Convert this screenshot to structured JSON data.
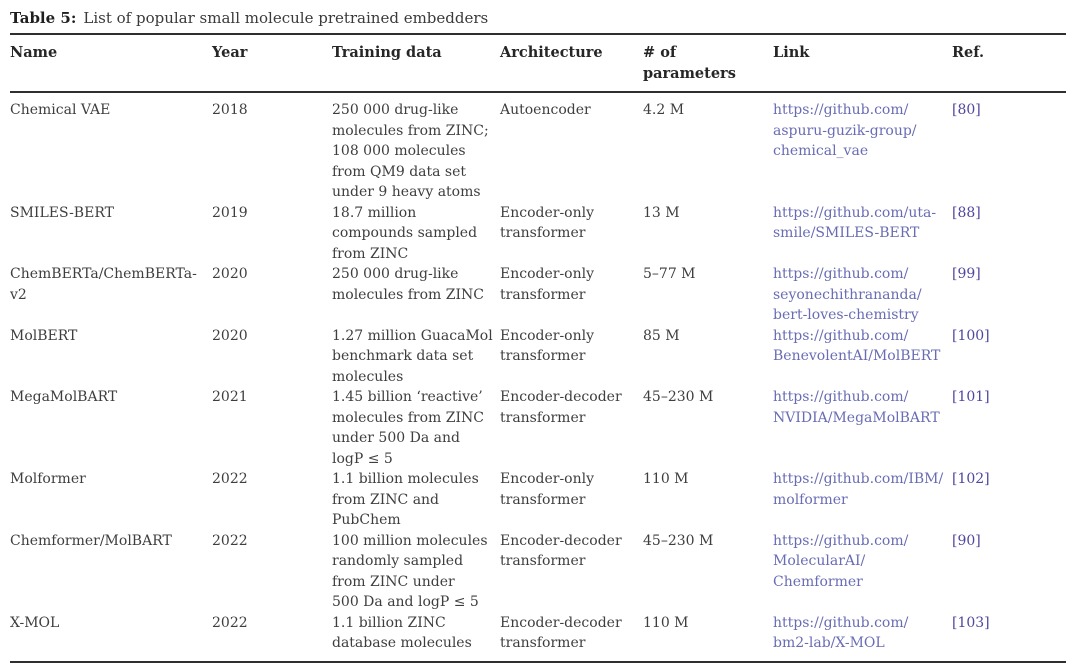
{
  "caption": {
    "label": "Table 5:",
    "text": "List of popular small molecule pretrained embedders"
  },
  "columns": {
    "name": "Name",
    "year": "Year",
    "training_data": "Training data",
    "architecture": "Architecture",
    "parameters": "# of\nparameters",
    "link": "Link",
    "ref": "Ref."
  },
  "colors": {
    "link": "#696cb4",
    "ref": "#4f46a0",
    "body_text": "#3f3e3e",
    "rule": "#2f2f2f"
  },
  "rows": [
    {
      "name": "Chemical VAE",
      "year": "2018",
      "training_data": "250 000 drug-like\nmolecules from ZINC;\n108 000 molecules\nfrom QM9 data set\nunder 9 heavy atoms",
      "architecture": "Autoencoder",
      "parameters": "4.2 M",
      "link": "https://github.com/\naspuru-guzik-group/\nchemical_vae",
      "ref": "[80]"
    },
    {
      "name": "SMILES-BERT",
      "year": "2019",
      "training_data": "18.7 million\ncompounds sampled\nfrom ZINC",
      "architecture": "Encoder-only\ntransformer",
      "parameters": "13 M",
      "link": "https://github.com/uta-\nsmile/SMILES-BERT",
      "ref": "[88]"
    },
    {
      "name": "ChemBERTa/ChemBERTa-\nv2",
      "year": "2020",
      "training_data": "250 000 drug-like\nmolecules from ZINC",
      "architecture": "Encoder-only\ntransformer",
      "parameters": "5–77 M",
      "link": "https://github.com/\nseyonechithrananda/\nbert-loves-chemistry",
      "ref": "[99]"
    },
    {
      "name": "MolBERT",
      "year": "2020",
      "training_data": "1.27 million GuacaMol\nbenchmark data set\nmolecules",
      "architecture": "Encoder-only\ntransformer",
      "parameters": "85 M",
      "link": "https://github.com/\nBenevolentAI/MolBERT",
      "ref": "[100]"
    },
    {
      "name": "MegaMolBART",
      "year": "2021",
      "training_data": "1.45 billion ‘reactive’\nmolecules from ZINC\nunder 500 Da and\nlogP ≤ 5",
      "architecture": "Encoder-decoder\ntransformer",
      "parameters": "45–230 M",
      "link": "https://github.com/\nNVIDIA/MegaMolBART",
      "ref": "[101]"
    },
    {
      "name": "Molformer",
      "year": "2022",
      "training_data": "1.1 billion molecules\nfrom ZINC and\nPubChem",
      "architecture": "Encoder-only\ntransformer",
      "parameters": "110 M",
      "link": "https://github.com/IBM/\nmolformer",
      "ref": "[102]"
    },
    {
      "name": "Chemformer/MolBART",
      "year": "2022",
      "training_data": "100 million molecules\nrandomly sampled\nfrom ZINC under\n500 Da and logP ≤ 5",
      "architecture": "Encoder-decoder\ntransformer",
      "parameters": "45–230 M",
      "link": "https://github.com/\nMolecularAI/\nChemformer",
      "ref": "[90]"
    },
    {
      "name": "X-MOL",
      "year": "2022",
      "training_data": "1.1 billion ZINC\ndatabase molecules",
      "architecture": "Encoder-decoder\ntransformer",
      "parameters": "110 M",
      "link": "https://github.com/\nbm2-lab/X-MOL",
      "ref": "[103]"
    }
  ]
}
